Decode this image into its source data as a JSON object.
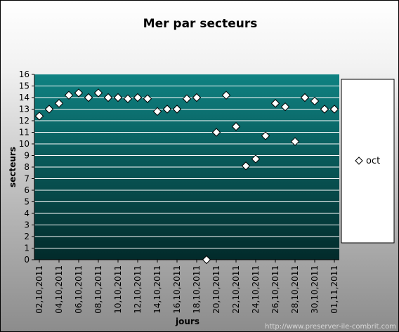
{
  "chart_data": {
    "type": "scatter",
    "title": "Mer par secteurs",
    "xlabel": "jours",
    "ylabel": "secteurs",
    "ylim": [
      0,
      16
    ],
    "y_ticks": [
      0,
      1,
      2,
      3,
      4,
      5,
      6,
      7,
      8,
      9,
      10,
      11,
      12,
      13,
      14,
      15,
      16
    ],
    "x_tick_labels": [
      "02,10,2011",
      "04,10,2011",
      "06,10,2011",
      "08,10,2011",
      "10,10,2011",
      "12,10,2011",
      "14,10,2011",
      "16,10,2011",
      "18,10,2011",
      "20,10,2011",
      "22,10,2011",
      "24,10,2011",
      "26,10,2011",
      "28,10,2011",
      "30,10,2011",
      "01,11,2011"
    ],
    "grid": true,
    "legend_position": "right",
    "series": [
      {
        "name": "oct",
        "marker": "diamond",
        "values": [
          12.4,
          13.0,
          13.5,
          14.2,
          14.4,
          14.0,
          14.4,
          14.0,
          14.0,
          13.9,
          14.0,
          13.9,
          12.8,
          13.0,
          13.0,
          13.9,
          14.0,
          0.0,
          11.0,
          14.2,
          11.5,
          8.1,
          8.7,
          10.7,
          13.5,
          13.2,
          10.2,
          14.0,
          13.7,
          13.0,
          13.0
        ]
      }
    ],
    "colors": {
      "plot_top": "#0f8282",
      "plot_bottom": "#022a2a",
      "gridline": "#ffffff",
      "marker_fill": "#ffffff",
      "marker_stroke": "#000000"
    }
  },
  "credit": "http://www.preserver-ile-combrit.com"
}
